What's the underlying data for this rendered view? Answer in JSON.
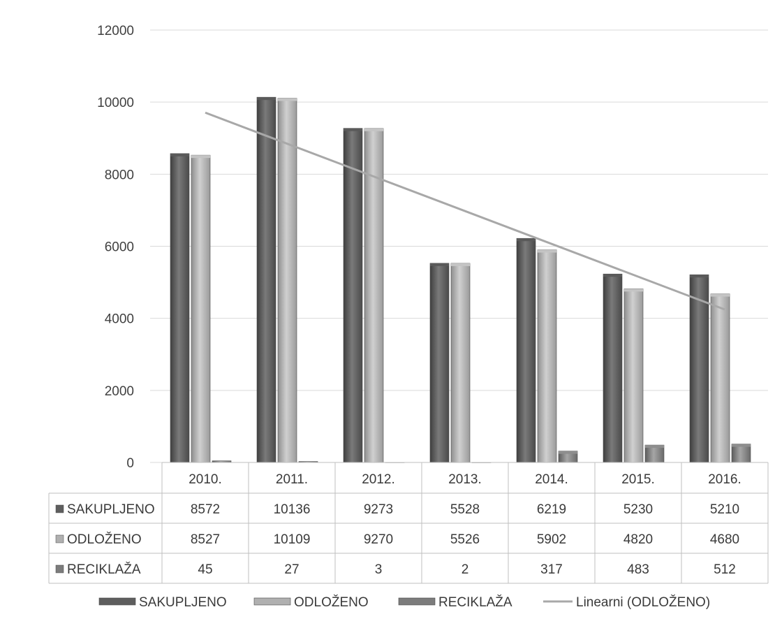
{
  "chart_data": {
    "type": "bar",
    "categories": [
      "2010.",
      "2011.",
      "2012.",
      "2013.",
      "2014.",
      "2015.",
      "2016."
    ],
    "series": [
      {
        "name": "SAKUPLJENO",
        "values": [
          8572,
          10136,
          9273,
          5528,
          6219,
          5230,
          5210
        ]
      },
      {
        "name": "ODLOŽENO",
        "values": [
          8527,
          10109,
          9270,
          5526,
          5902,
          4820,
          4680
        ]
      },
      {
        "name": "RECIKLAŽA",
        "values": [
          45,
          27,
          3,
          2,
          317,
          483,
          512
        ]
      }
    ],
    "trendline": {
      "name": "Linearni (ODLOŽENO)",
      "of_series": "ODLOŽENO",
      "type": "linear"
    },
    "yticks": [
      "12000",
      "10000",
      "8000",
      "6000",
      "4000",
      "2000",
      "0"
    ],
    "ylim": [
      0,
      12000
    ],
    "grid": true,
    "data_table": true,
    "legend_position": "bottom",
    "colors": {
      "SAKUPLJENO": "#6e6e6e",
      "ODLOŽENO": "#b4b4b4",
      "RECIKLAŽA": "#8a8a8a",
      "trendline": "#a8a8a8"
    }
  }
}
